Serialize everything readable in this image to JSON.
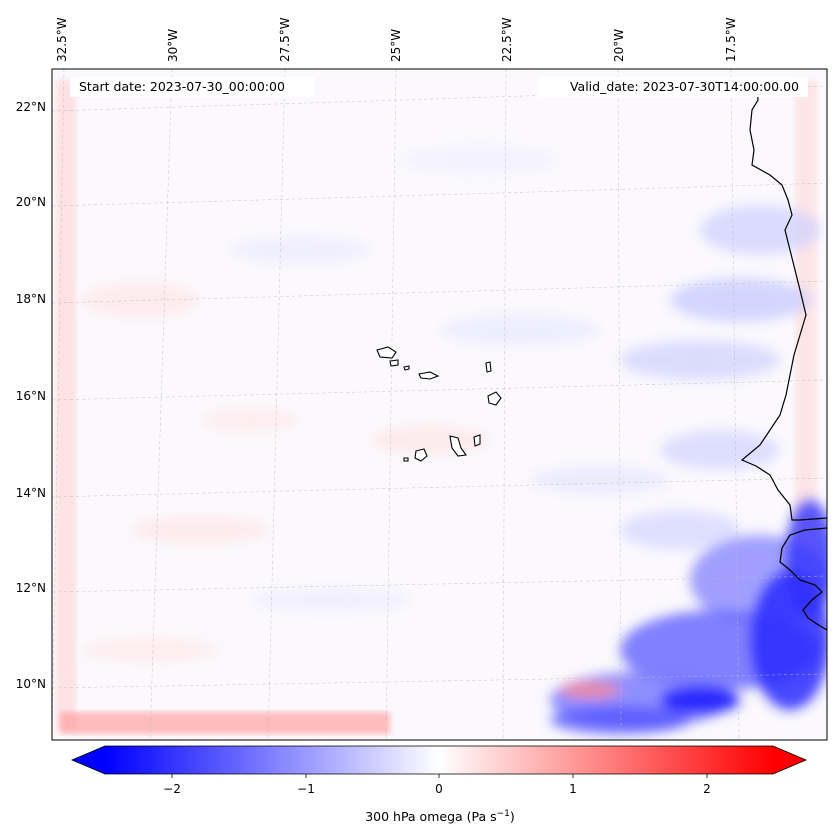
{
  "header": {
    "start_date": "Start date: 2023-07-30_00:00:00",
    "valid_date": "Valid_date: 2023-07-30T14:00:00.00"
  },
  "map": {
    "longitude_labels": [
      "32.5°W",
      "30°W",
      "27.5°W",
      "25°W",
      "22.5°W",
      "20°W",
      "17.5°W"
    ],
    "latitude_labels": [
      "22°N",
      "20°N",
      "18°N",
      "16°N",
      "14°N",
      "12°N",
      "10°N"
    ],
    "colors": {
      "coastline": "#000000",
      "grid": "#bbbbbb"
    }
  },
  "colorbar": {
    "ticks": [
      "−2",
      "−1",
      "0",
      "1",
      "2"
    ],
    "title": "300 hPa omega (Pa s",
    "title_exp": "−1",
    "title_close": ")",
    "range": [
      -2.5,
      2.5
    ],
    "colors": {
      "min": "#0000ff",
      "mid": "#ffffff",
      "max": "#ff0000"
    }
  }
}
